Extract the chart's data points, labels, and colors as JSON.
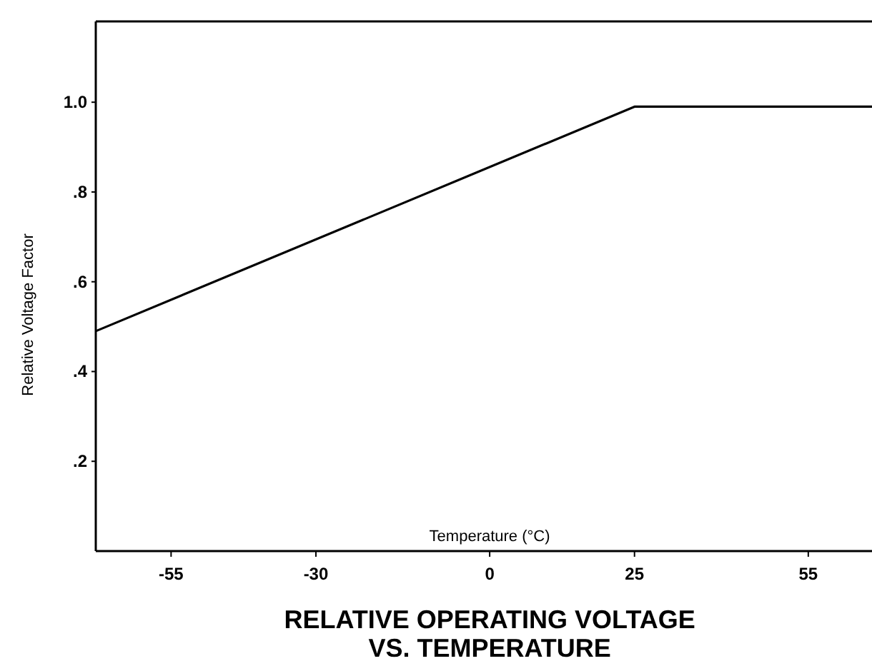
{
  "chart_data": {
    "type": "line",
    "title": "RELATIVE OPERATING VOLTAGE\nVS. TEMPERATURE",
    "xlabel": "Temperature (°C)",
    "ylabel": "Relative Voltage Factor",
    "x": [
      -68,
      25,
      66
    ],
    "series": [
      {
        "color": "#000000",
        "values": [
          0.49,
          0.99,
          0.99
        ]
      }
    ],
    "xlim": [
      -68,
      66
    ],
    "xticks": [
      -55,
      -30,
      0,
      25,
      55
    ],
    "ylim": [
      0,
      1.18
    ],
    "yticks": [
      {
        "value": 0.2,
        "label": ".2"
      },
      {
        "value": 0.4,
        "label": ".4"
      },
      {
        "value": 0.6,
        "label": ".6"
      },
      {
        "value": 0.8,
        "label": ".8"
      },
      {
        "value": 1.0,
        "label": "1.0"
      }
    ],
    "grid": false,
    "marker": "none",
    "line_style": "solid"
  }
}
